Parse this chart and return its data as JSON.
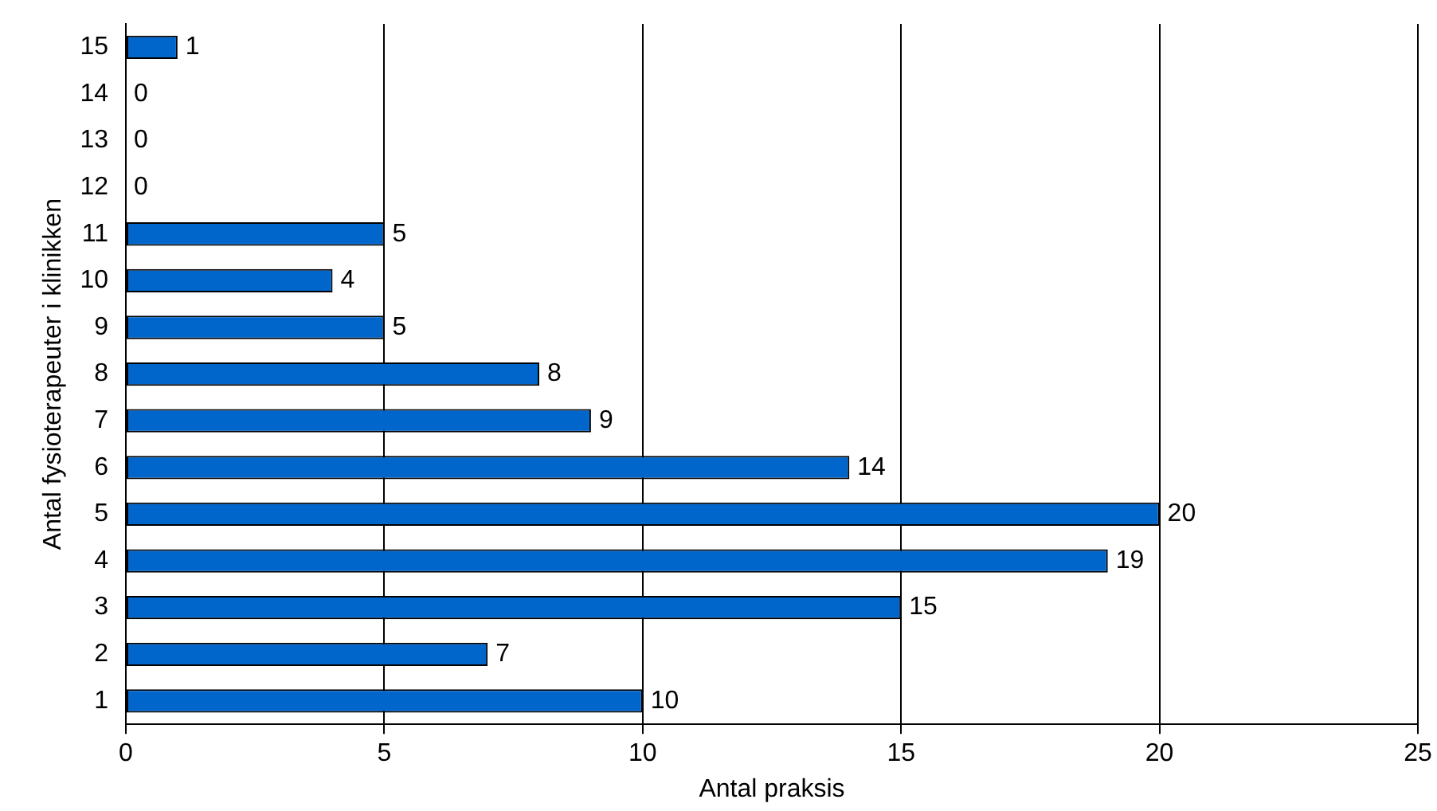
{
  "chart_data": {
    "type": "bar",
    "orientation": "horizontal",
    "xlabel": "Antal praksis",
    "ylabel": "Antal fysioterapeuter i klinikken",
    "categories": [
      "15",
      "14",
      "13",
      "12",
      "11",
      "10",
      "9",
      "8",
      "7",
      "6",
      "5",
      "4",
      "3",
      "2",
      "1"
    ],
    "values": [
      1,
      0,
      0,
      0,
      5,
      4,
      5,
      8,
      9,
      14,
      20,
      19,
      15,
      7,
      10
    ],
    "color": "#0066cc",
    "xlim": [
      0,
      25
    ],
    "xticks": [
      0,
      5,
      10,
      15,
      20,
      25
    ],
    "grid": "x",
    "data_labels": true,
    "legend": false
  }
}
